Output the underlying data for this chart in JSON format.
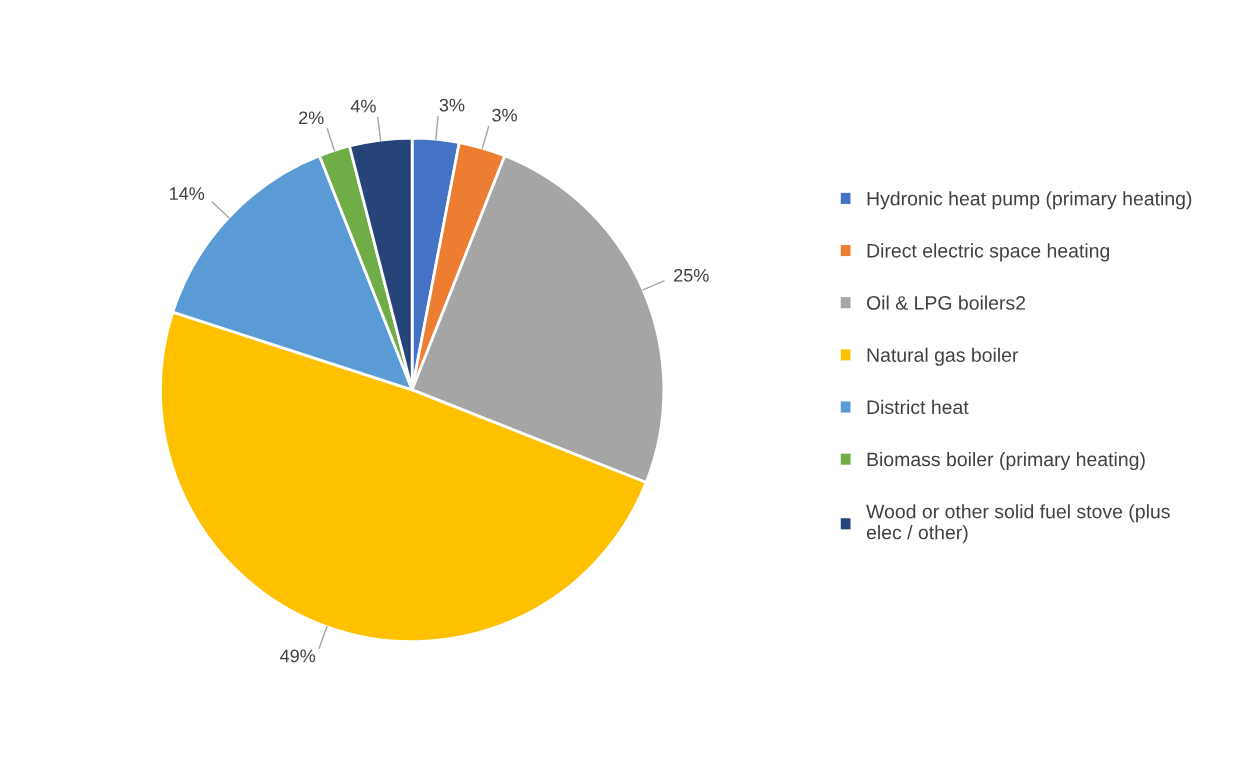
{
  "chart_data": {
    "type": "pie",
    "categories": [
      "Hydronic heat pump (primary heating)",
      "Direct electric space heating",
      "Oil & LPG boilers2",
      "Natural gas boiler",
      "District heat",
      "Biomass boiler (primary heating)",
      "Wood or other solid fuel stove (plus\nelec / other)"
    ],
    "values": [
      3,
      3,
      25,
      49,
      14,
      2,
      4
    ],
    "value_labels": [
      "3%",
      "3%",
      "25%",
      "49%",
      "14%",
      "2%",
      "4%"
    ],
    "colors": [
      "#4472c4",
      "#ed7d31",
      "#a5a5a5",
      "#ffc000",
      "#5b9bd5",
      "#70ad47",
      "#264478"
    ],
    "legend": "right"
  }
}
